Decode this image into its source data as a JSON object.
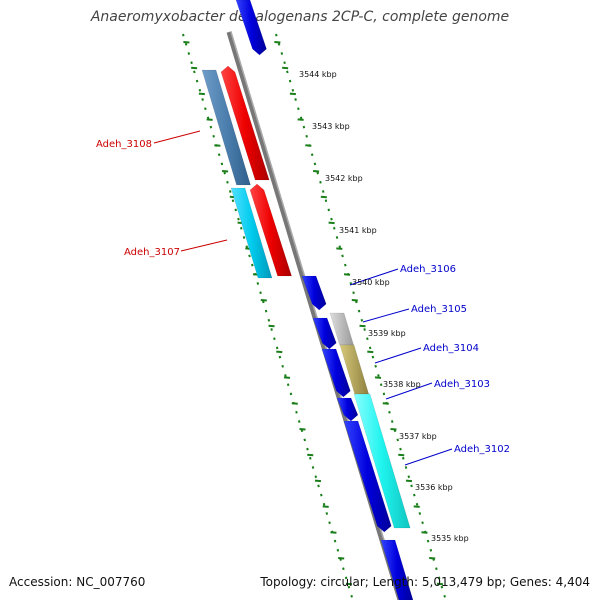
{
  "title": "Anaeromyxobacter dehalogenans 2CP-C, complete genome",
  "footer": {
    "accession": "Accession: NC_007760",
    "summary": "Topology: circular; Length: 5,013,479 bp; Genes: 4,404"
  },
  "colors": {
    "backbone": "#888888",
    "tick": "#1a7f1a",
    "forward_gene": "#0000dd",
    "red_gene": "#ee0000",
    "steel_gene": "#4c7fae",
    "cyan_gene": "#00ccee",
    "bright_cyan": "#1ff3ee",
    "gray_gene": "#bbbbbb",
    "olive_gene": "#b8a95a",
    "label_red": "#cc0000",
    "label_blue": "#0000cc"
  },
  "ticks": [
    {
      "label": "3544 kbp"
    },
    {
      "label": "3543 kbp"
    },
    {
      "label": "3542 kbp"
    },
    {
      "label": "3541 kbp"
    },
    {
      "label": "3540 kbp"
    },
    {
      "label": "3539 kbp"
    },
    {
      "label": "3538 kbp"
    },
    {
      "label": "3537 kbp"
    },
    {
      "label": "3536 kbp"
    },
    {
      "label": "3535 kbp"
    }
  ],
  "gene_labels": [
    {
      "name": "Adeh_3108",
      "color": "#cc0000"
    },
    {
      "name": "Adeh_3107",
      "color": "#cc0000"
    },
    {
      "name": "Adeh_3106",
      "color": "#0000cc"
    },
    {
      "name": "Adeh_3105",
      "color": "#0000cc"
    },
    {
      "name": "Adeh_3104",
      "color": "#0000cc"
    },
    {
      "name": "Adeh_3103",
      "color": "#0000cc"
    },
    {
      "name": "Adeh_3102",
      "color": "#0000cc"
    }
  ]
}
